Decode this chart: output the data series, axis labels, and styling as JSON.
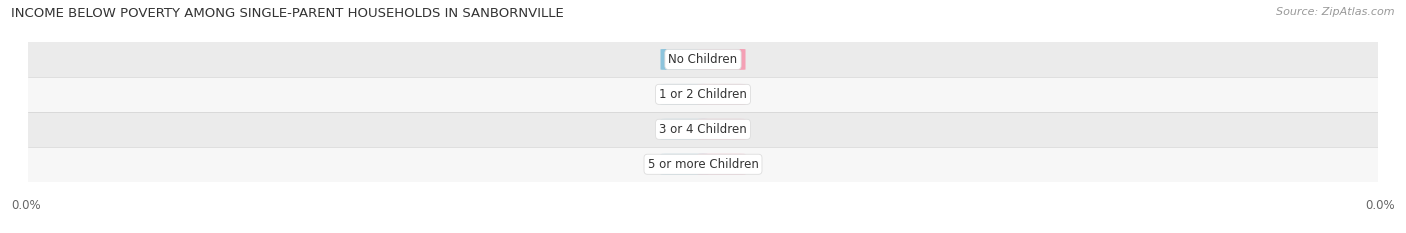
{
  "title": "INCOME BELOW POVERTY AMONG SINGLE-PARENT HOUSEHOLDS IN SANBORNVILLE",
  "source": "Source: ZipAtlas.com",
  "categories": [
    "No Children",
    "1 or 2 Children",
    "3 or 4 Children",
    "5 or more Children"
  ],
  "father_values": [
    0.0,
    0.0,
    0.0,
    0.0
  ],
  "mother_values": [
    0.0,
    0.0,
    0.0,
    0.0
  ],
  "father_color": "#8DC4DC",
  "mother_color": "#F4A0B5",
  "bar_height": 0.58,
  "min_bar_width": 0.055,
  "xlim": [
    -1.0,
    1.0
  ],
  "background_color": "#ffffff",
  "row_bg_even": "#ebebeb",
  "row_bg_odd": "#f7f7f7",
  "title_fontsize": 9.5,
  "source_fontsize": 8,
  "legend_fontsize": 8.5,
  "value_fontsize": 7.5,
  "category_fontsize": 8.5,
  "axis_label_color": "#666666",
  "title_color": "#333333",
  "xaxis_label": "0.0%"
}
